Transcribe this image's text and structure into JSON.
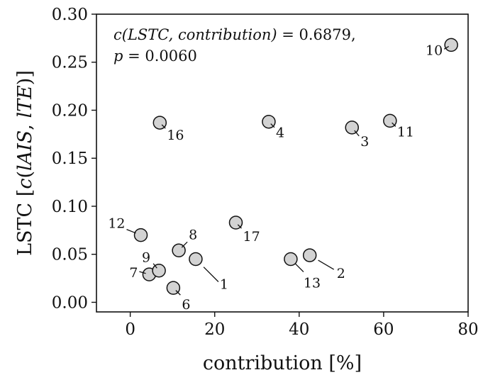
{
  "chart_data": {
    "type": "scatter",
    "xlabel": "contribution [%]",
    "ylabel": {
      "prefix": "LSTC [",
      "func": "c",
      "open": "(",
      "a": "lAIS",
      "sep": ", ",
      "b": "lTE",
      "close": ")]"
    },
    "xlim": [
      -8,
      80
    ],
    "ylim": [
      -0.01,
      0.3
    ],
    "xticks": [
      "0",
      "20",
      "40",
      "60",
      "80"
    ],
    "yticks": [
      "0.00",
      "0.05",
      "0.10",
      "0.15",
      "0.20",
      "0.25",
      "0.30"
    ],
    "grid": false,
    "annotation": {
      "line1_func": "c",
      "line1_args": "(LSTC, contribution)",
      "line1_value": " = 0.6879,",
      "line2_var": "p",
      "line2_value": " = 0.0060"
    },
    "marker_fill": "#d3d3d3",
    "marker_edge": "#111111",
    "points": [
      {
        "label": "1",
        "x": 15.5,
        "y": 0.045
      },
      {
        "label": "2",
        "x": 42.5,
        "y": 0.049
      },
      {
        "label": "3",
        "x": 52.5,
        "y": 0.182
      },
      {
        "label": "4",
        "x": 32.8,
        "y": 0.188
      },
      {
        "label": "6",
        "x": 10.2,
        "y": 0.015
      },
      {
        "label": "7",
        "x": 4.5,
        "y": 0.029
      },
      {
        "label": "8",
        "x": 11.5,
        "y": 0.054
      },
      {
        "label": "9",
        "x": 6.8,
        "y": 0.033
      },
      {
        "label": "10",
        "x": 76.0,
        "y": 0.268
      },
      {
        "label": "11",
        "x": 61.5,
        "y": 0.189
      },
      {
        "label": "12",
        "x": 2.5,
        "y": 0.07
      },
      {
        "label": "13",
        "x": 38.0,
        "y": 0.045
      },
      {
        "label": "16",
        "x": 7.0,
        "y": 0.187
      },
      {
        "label": "17",
        "x": 25.0,
        "y": 0.083
      }
    ]
  }
}
